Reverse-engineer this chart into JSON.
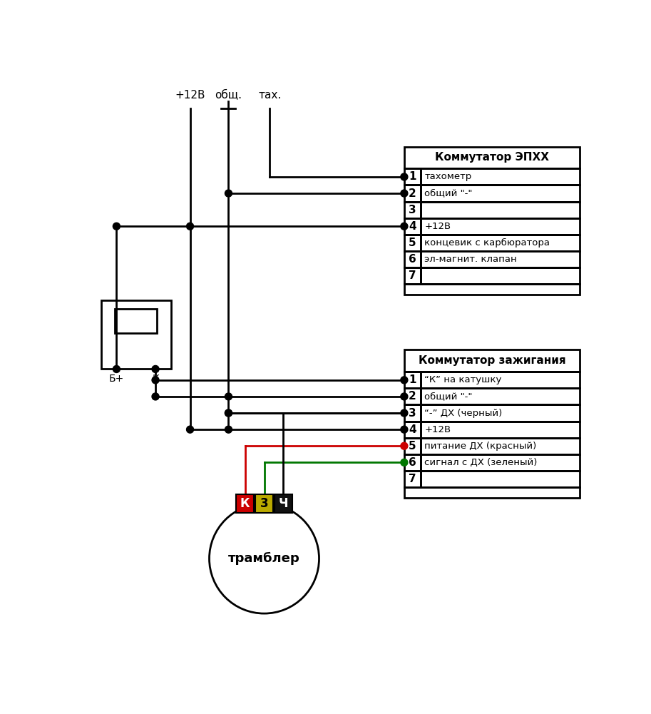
{
  "bg_color": "#ffffff",
  "lc": "#000000",
  "red": "#cc0000",
  "green": "#007700",
  "table1_title": "Коммутатор ЭПХХ",
  "table1_pins": [
    "1",
    "2",
    "3",
    "4",
    "5",
    "6",
    "7"
  ],
  "table1_labels": [
    "тахометр",
    "общий \"-\"",
    "",
    "+12В",
    "концевик с карбюратора",
    "эл-магнит. клапан",
    ""
  ],
  "table2_title": "Коммутатор зажигания",
  "table2_pins": [
    "1",
    "2",
    "3",
    "4",
    "5",
    "6",
    "7"
  ],
  "table2_labels": [
    "“К” на катушку",
    "общий \"-\"",
    "“-” ДХ (черный)",
    "+12В",
    "питание ДХ (красный)",
    "сигнал с ДХ (зеленый)",
    ""
  ],
  "top_labels": [
    "+12В",
    "общ.",
    "тах."
  ],
  "trambler": "трамблер",
  "conn_labels": [
    "К",
    "3",
    "Ч"
  ]
}
